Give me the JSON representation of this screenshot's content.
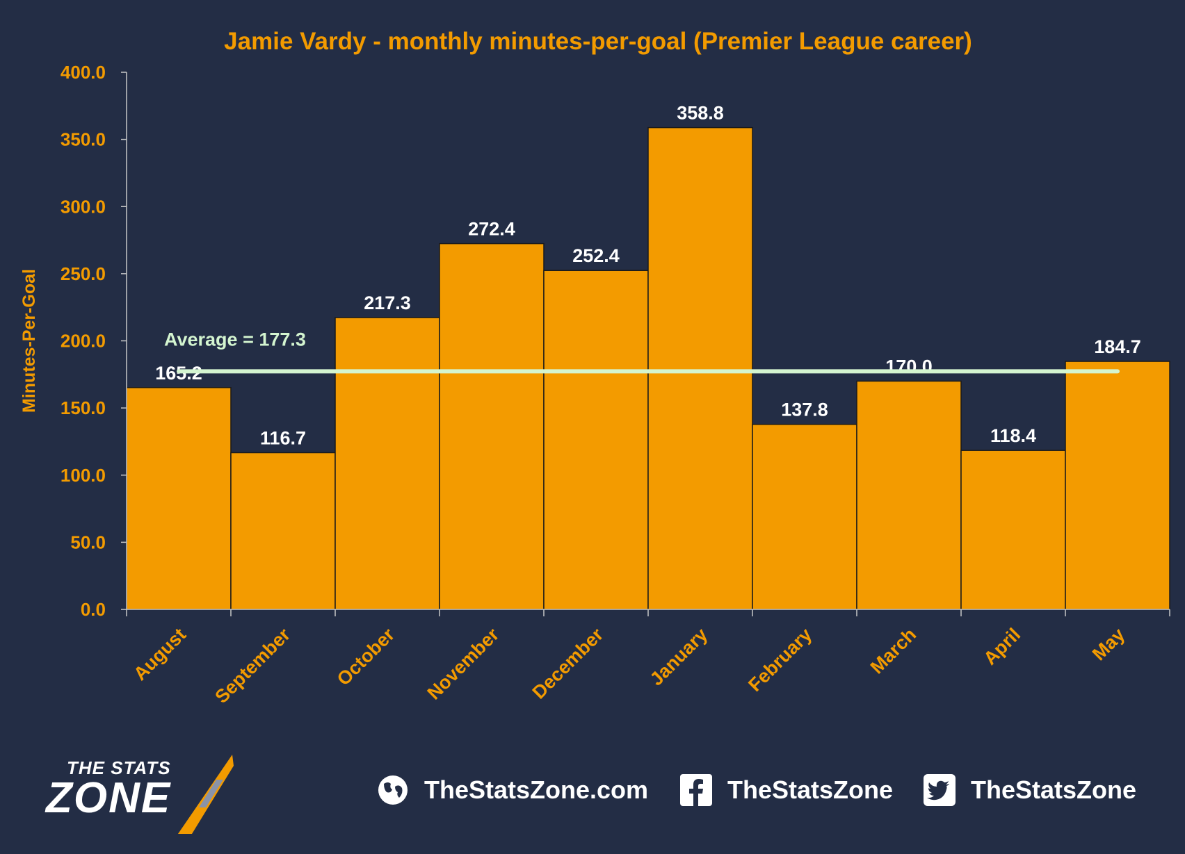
{
  "chart_data": {
    "type": "bar",
    "title": "Jamie Vardy - monthly minutes-per-goal (Premier League career)",
    "ylabel": "Minutes-Per-Goal",
    "xlabel": "",
    "categories": [
      "August",
      "September",
      "October",
      "November",
      "December",
      "January",
      "February",
      "March",
      "April",
      "May"
    ],
    "values": [
      165.2,
      116.7,
      217.3,
      272.4,
      252.4,
      358.8,
      137.8,
      170.0,
      118.4,
      184.7
    ],
    "value_labels": [
      "165.2",
      "116.7",
      "217.3",
      "272.4",
      "252.4",
      "358.8",
      "137.8",
      "170.0",
      "118.4",
      "184.7"
    ],
    "ylim": [
      0,
      400
    ],
    "yticks": [
      "0.0",
      "50.0",
      "100.0",
      "150.0",
      "200.0",
      "250.0",
      "300.0",
      "350.0",
      "400.0"
    ],
    "average": {
      "value": 177.3,
      "label": "Average = 177.3"
    },
    "grid": false,
    "colors": {
      "background": "#232d45",
      "bar": "#f39b00",
      "bar_outline": "#1a1a1a",
      "axis_text": "#f39b00",
      "value_text": "#ffffff",
      "average_line": "#d4f5d0",
      "average_text": "#d4f5d0"
    }
  },
  "footer": {
    "logo_top": "THE STATS",
    "logo_bottom": "ZONE",
    "website": {
      "icon": "globe-icon",
      "label": "TheStatsZone.com"
    },
    "facebook": {
      "icon": "facebook-icon",
      "label": "TheStatsZone"
    },
    "twitter": {
      "icon": "twitter-icon",
      "label": "TheStatsZone"
    }
  }
}
